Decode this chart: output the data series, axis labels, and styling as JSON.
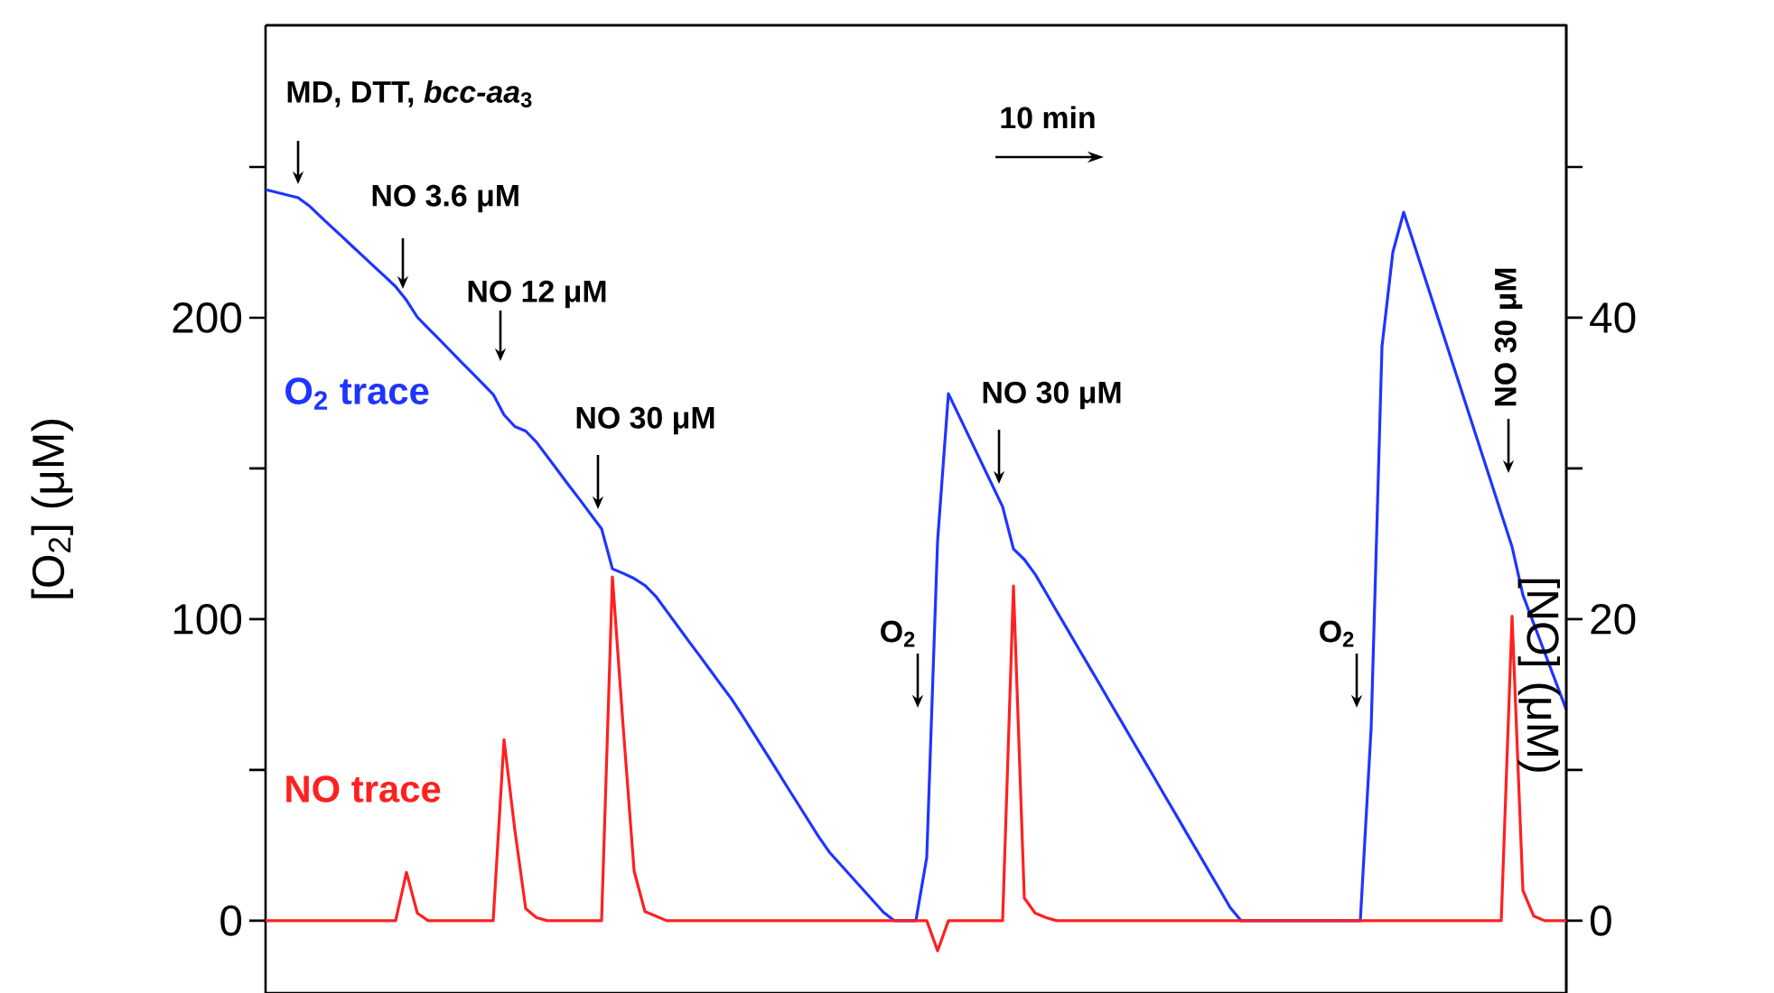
{
  "chart_data": {
    "type": "line",
    "ylabel": "[O$_{2}$] (μM)",
    "y2label": "[NO] (μM)",
    "categories": [
      null,
      null,
      null,
      null,
      null,
      null,
      null,
      null,
      null,
      null,
      null,
      null,
      null,
      null,
      null,
      null,
      null,
      null,
      null,
      null,
      null,
      null,
      null,
      null,
      null,
      null,
      null,
      null,
      null,
      null,
      null,
      null,
      null,
      null,
      null,
      null,
      null,
      null,
      null,
      null,
      null,
      null,
      null,
      null,
      null,
      null,
      null,
      null,
      null,
      null,
      null,
      null,
      null,
      null,
      null,
      null,
      null,
      null,
      null,
      null,
      null,
      null,
      null,
      null,
      null,
      null,
      null,
      null,
      null,
      null,
      null,
      null,
      null,
      null,
      null,
      null,
      null,
      null,
      null,
      null,
      null,
      null,
      null,
      null,
      null,
      null,
      null,
      null,
      null,
      null,
      null,
      null,
      null,
      null,
      null,
      null,
      null,
      null,
      null,
      null,
      null,
      null,
      null,
      null,
      null,
      null,
      null,
      null,
      null,
      null,
      null,
      null,
      null,
      null,
      null,
      null,
      null,
      null,
      null,
      null,
      null
    ],
    "ylim": [
      -24,
      297
    ],
    "yticks": [
      0,
      {
        "value": 50,
        "label": null
      },
      100,
      {
        "value": 150,
        "label": null
      },
      200,
      {
        "value": 250,
        "label": null
      }
    ],
    "y2lim": [
      -4.8,
      59.4
    ],
    "y2ticks": [
      0,
      {
        "value": 10,
        "label": null
      },
      20,
      {
        "value": 30,
        "label": null
      },
      40,
      {
        "value": 50,
        "label": null
      }
    ],
    "marker": "none",
    "series": [
      {
        "name": "O$_{2}$ trace",
        "color": "#1f35ff",
        "values": [
          242.5,
          241.6,
          240.7,
          239.8,
          237.2,
          233.8,
          230.4,
          227.1,
          223.7,
          220.4,
          217.0,
          213.7,
          210.3,
          205.8,
          200.2,
          196.5,
          192.9,
          189.2,
          185.5,
          181.9,
          178.2,
          174.6,
          167.8,
          163.9,
          162.4,
          158.7,
          153.9,
          149.1,
          144.3,
          139.6,
          134.8,
          130,
          116.7,
          115.2,
          113.5,
          111.2,
          107.6,
          102.7,
          97.8,
          92.9,
          88.1,
          83.2,
          78.3,
          73.5,
          68.0,
          62.3,
          56.6,
          50.9,
          45.1,
          39.4,
          33.7,
          28.0,
          22.8,
          18.8,
          14.8,
          10.8,
          6.8,
          2.8,
          0,
          0,
          0,
          21,
          126,
          174.8,
          167.3,
          159.8,
          152.3,
          144.8,
          137.3,
          123.3,
          119.8,
          114.9,
          108.8,
          102.6,
          96.5,
          90.3,
          84.2,
          78.1,
          71.9,
          65.8,
          59.6,
          53.5,
          47.4,
          41.2,
          35.1,
          28.9,
          22.8,
          16.6,
          10.5,
          4.3,
          0,
          0,
          0,
          0,
          0,
          0,
          0,
          0,
          0,
          0,
          0,
          0,
          64,
          190.5,
          221.7,
          235,
          223.9,
          212.8,
          201.7,
          190.6,
          179.5,
          168.4,
          157.3,
          146.2,
          135.1,
          124,
          108,
          98.5,
          89,
          79.5,
          70
        ]
      },
      {
        "name": "NO trace",
        "color": "#ff2020",
        "axis": "y2",
        "values": [
          0,
          0,
          0,
          0,
          0,
          0,
          0,
          0,
          0,
          0,
          0,
          0,
          0,
          3.2,
          0.5,
          0,
          0,
          0,
          0,
          0,
          0,
          0,
          12,
          6,
          0.8,
          0.2,
          0,
          0,
          0,
          0,
          0,
          0,
          22.8,
          12.8,
          3.3,
          0.6,
          0.3,
          0,
          0,
          0,
          0,
          0,
          0,
          0,
          0,
          0,
          0,
          0,
          0,
          0,
          0,
          0,
          0,
          0,
          0,
          0,
          0,
          0,
          0,
          0,
          0,
          0,
          -2,
          0,
          0,
          0,
          0,
          0,
          0,
          22.2,
          1.5,
          0.5,
          0.2,
          0,
          0,
          0,
          0,
          0,
          0,
          0,
          0,
          0,
          0,
          0,
          0,
          0,
          0,
          0,
          0,
          0,
          0,
          0,
          0,
          0,
          0,
          0,
          0,
          0,
          0,
          0,
          0,
          0,
          0,
          0,
          0,
          0,
          0,
          0,
          0,
          0,
          0,
          0,
          0,
          0,
          0,
          20.2,
          2,
          0.3,
          0,
          0,
          0
        ]
      }
    ],
    "annotations": [
      "MD, DTT, *bcc-aa*$_{3}$",
      "NO 3.6 μM",
      "NO 12 μM",
      "NO 30 μM",
      "O$_{2}$",
      "NO 30 μM",
      "O$_{2}$",
      "NO 30 μM",
      "10 min"
    ]
  }
}
